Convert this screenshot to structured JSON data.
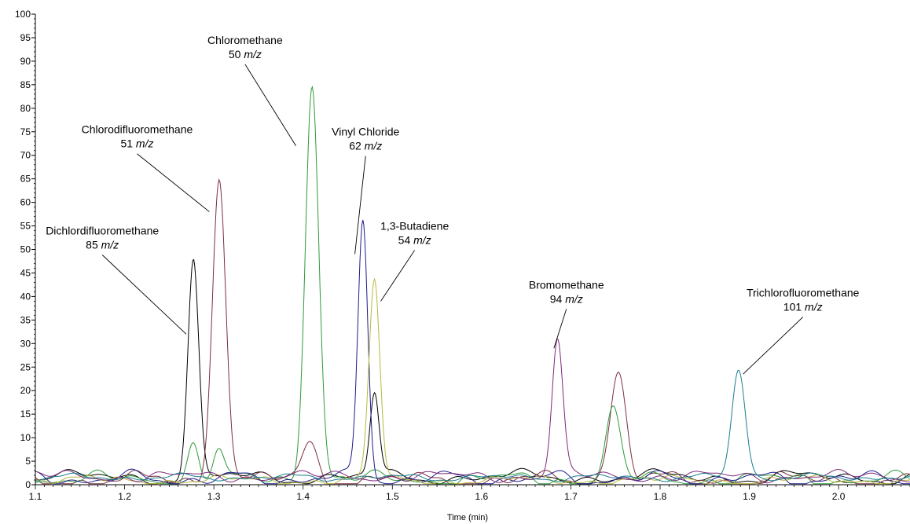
{
  "chart_data": {
    "type": "line",
    "title": "",
    "xlabel": "Time (min)",
    "ylabel": "",
    "xlim": [
      1.1,
      2.08
    ],
    "ylim": [
      0,
      100
    ],
    "x_ticks": [
      "1.1",
      "1.2",
      "1.3",
      "1.4",
      "1.5",
      "1.6",
      "1.7",
      "1.8",
      "1.9",
      "2.0"
    ],
    "y_ticks": [
      "0",
      "5",
      "10",
      "15",
      "20",
      "25",
      "30",
      "35",
      "40",
      "45",
      "50",
      "55",
      "60",
      "65",
      "70",
      "75",
      "80",
      "85",
      "90",
      "95",
      "100"
    ],
    "grid": false,
    "legend": "none",
    "series": [
      {
        "color": "#000000",
        "peaks": [
          {
            "rt": 1.277,
            "height": 45.5,
            "width": 0.006
          },
          {
            "rt": 1.48,
            "height": 17.5,
            "width": 0.005
          }
        ]
      },
      {
        "color": "#7a3040",
        "peaks": [
          {
            "rt": 1.306,
            "height": 65.5,
            "width": 0.0075
          },
          {
            "rt": 1.407,
            "height": 7.5,
            "width": 0.009
          },
          {
            "rt": 1.753,
            "height": 23.5,
            "width": 0.009
          }
        ]
      },
      {
        "color": "#2e9a3a",
        "peaks": [
          {
            "rt": 1.277,
            "height": 7.5,
            "width": 0.006
          },
          {
            "rt": 1.305,
            "height": 6.0,
            "width": 0.006
          },
          {
            "rt": 1.41,
            "height": 84.5,
            "width": 0.0075
          },
          {
            "rt": 1.747,
            "height": 14.5,
            "width": 0.008
          }
        ]
      },
      {
        "color": "#1c1c8c",
        "peaks": [
          {
            "rt": 1.467,
            "height": 55.5,
            "width": 0.0055
          }
        ]
      },
      {
        "color": "#b8b840",
        "peaks": [
          {
            "rt": 1.48,
            "height": 42.5,
            "width": 0.006
          }
        ]
      },
      {
        "color": "#80287a",
        "peaks": [
          {
            "rt": 1.685,
            "height": 29.0,
            "width": 0.006
          }
        ]
      },
      {
        "color": "#1a7e8e",
        "peaks": [
          {
            "rt": 1.888,
            "height": 23.0,
            "width": 0.0075
          }
        ]
      }
    ],
    "annotations": [
      {
        "name": "Dichlordifluoromethane",
        "mz_value": "85",
        "mz_unit": "m/z",
        "target": {
          "x": 1.269,
          "y": 32
        },
        "label_at": {
          "x": 1.175,
          "y": 50.5
        }
      },
      {
        "name": "Chlorodifluoromethane",
        "mz_value": "51",
        "mz_unit": "m/z",
        "target": {
          "x": 1.295,
          "y": 58
        },
        "label_at": {
          "x": 1.214,
          "y": 72
        }
      },
      {
        "name": "Chloromethane",
        "mz_value": "50",
        "mz_unit": "m/z",
        "target": {
          "x": 1.392,
          "y": 72
        },
        "label_at": {
          "x": 1.335,
          "y": 91
        }
      },
      {
        "name": "Vinyl Chloride",
        "mz_value": "62",
        "mz_unit": "m/z",
        "target": {
          "x": 1.458,
          "y": 49
        },
        "label_at": {
          "x": 1.47,
          "y": 71.5
        }
      },
      {
        "name": "1,3-Butadiene",
        "mz_value": "54",
        "mz_unit": "m/z",
        "target": {
          "x": 1.487,
          "y": 39
        },
        "label_at": {
          "x": 1.525,
          "y": 51.5
        }
      },
      {
        "name": "Bromomethane",
        "mz_value": "94",
        "mz_unit": "m/z",
        "target": {
          "x": 1.681,
          "y": 29
        },
        "label_at": {
          "x": 1.695,
          "y": 39
        }
      },
      {
        "name": "Trichlorofluoromethane",
        "mz_value": "101",
        "mz_unit": "m/z",
        "target": {
          "x": 1.893,
          "y": 23.5
        },
        "label_at": {
          "x": 1.96,
          "y": 37.3
        }
      }
    ]
  }
}
